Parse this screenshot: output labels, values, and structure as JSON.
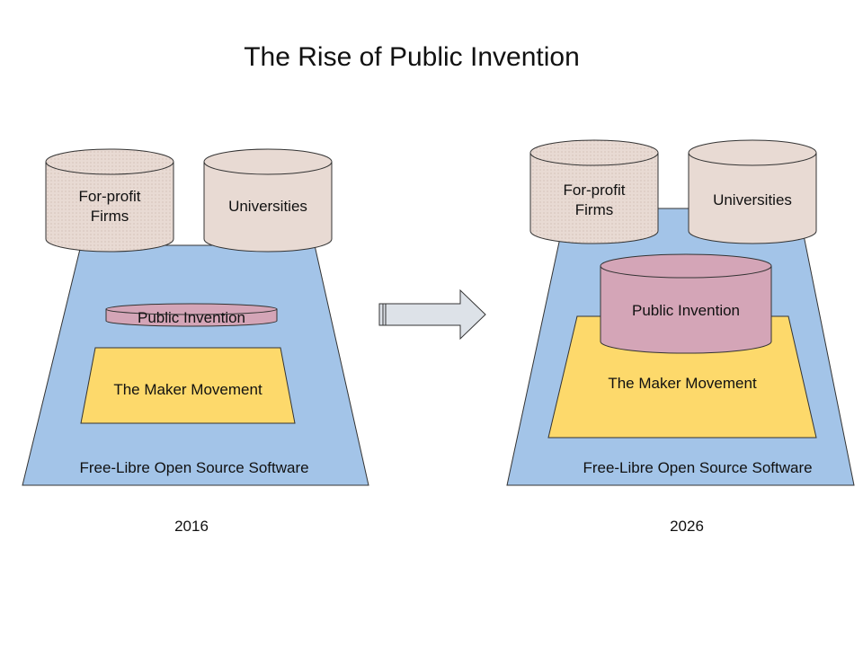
{
  "title": "The Rise of Public Invention",
  "colors": {
    "foss": "#a3c4e8",
    "maker": "#fdd96b",
    "public_invention": "#d4a5b7",
    "institution": "#e8dad3",
    "outline": "#333333",
    "arrow": "#dde2e8"
  },
  "panel_2016": {
    "year": "2016",
    "foss_label": "Free-Libre Open Source Software",
    "maker_label": "The Maker Movement",
    "public_invention_label": "Public Invention",
    "firms_label_line1": "For-profit",
    "firms_label_line2": "Firms",
    "universities_label": "Universities"
  },
  "panel_2026": {
    "year": "2026",
    "foss_label": "Free-Libre Open Source Software",
    "maker_label": "The Maker Movement",
    "public_invention_label": "Public Invention",
    "firms_label_line1": "For-profit",
    "firms_label_line2": "Firms",
    "universities_label": "Universities"
  },
  "arrow_icon": "right-arrow-icon"
}
